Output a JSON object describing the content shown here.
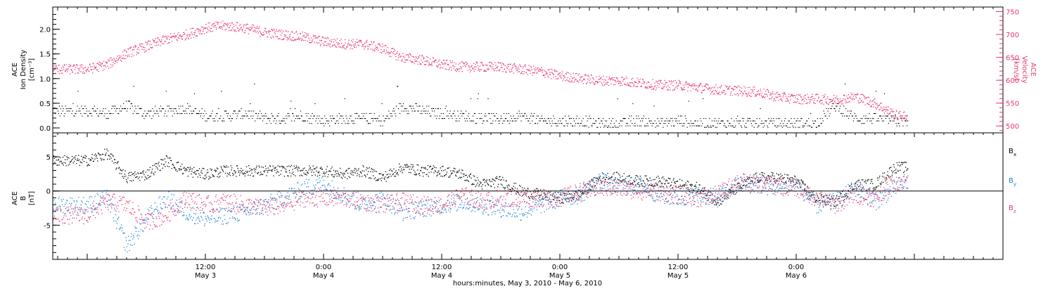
{
  "chart_data": [
    {
      "type": "scatter",
      "panel": "top",
      "ylabel_left": [
        "ACE",
        "Ion Density",
        "[cm⁻³]"
      ],
      "ylabel_right": [
        "ACE",
        "Velocity",
        "[km/s]"
      ],
      "ylim_left": [
        -0.1,
        2.45
      ],
      "ylim_right": [
        485,
        760
      ],
      "yticks_left": [
        "0.0",
        "0.5",
        "1.0",
        "1.5",
        "2.0"
      ],
      "ytick_values_left": [
        0.0,
        0.5,
        1.0,
        1.5,
        2.0
      ],
      "yticks_right": [
        "500",
        "550",
        "600",
        "650",
        "700",
        "750"
      ],
      "ytick_values_right": [
        500,
        550,
        600,
        650,
        700,
        750
      ],
      "colors": {
        "density": "#000000",
        "velocity": "#e8386b"
      },
      "series": [
        {
          "axis": "left",
          "x_hours": [
            0,
            2,
            4,
            6,
            8,
            10,
            12,
            14,
            16,
            18,
            20,
            22,
            24,
            26,
            28,
            30,
            32,
            34,
            36,
            38,
            40,
            42,
            44,
            46,
            48,
            50,
            52,
            54,
            56,
            58,
            60,
            62,
            64,
            66,
            68,
            70,
            72,
            74,
            76,
            78,
            80,
            82,
            83.3
          ],
          "values": [
            0.35,
            0.3,
            0.45,
            0.3,
            0.35,
            0.4,
            0.25,
            0.25,
            0.3,
            0.2,
            0.2,
            0.25,
            0.15,
            0.2,
            0.2,
            0.15,
            0.45,
            0.35,
            0.3,
            0.25,
            0.2,
            0.2,
            0.25,
            0.15,
            0.15,
            0.15,
            0.1,
            0.1,
            0.15,
            0.1,
            0.15,
            0.1,
            0.1,
            0.1,
            0.1,
            0.1,
            0.1,
            0.1,
            0.45,
            0.2,
            0.2,
            0.15,
            0.15
          ]
        },
        {
          "axis": "right",
          "x_hours": [
            0,
            2,
            4,
            6,
            8,
            10,
            12,
            14,
            16,
            18,
            20,
            22,
            24,
            26,
            28,
            30,
            32,
            34,
            36,
            38,
            40,
            42,
            44,
            46,
            48,
            50,
            52,
            54,
            56,
            58,
            60,
            62,
            64,
            66,
            68,
            70,
            72,
            74,
            76,
            78,
            80,
            82,
            83.3
          ],
          "values": [
            625,
            635,
            660,
            675,
            690,
            700,
            715,
            720,
            715,
            705,
            700,
            695,
            685,
            680,
            680,
            670,
            650,
            645,
            635,
            630,
            630,
            630,
            625,
            620,
            610,
            605,
            600,
            600,
            595,
            590,
            590,
            585,
            580,
            578,
            575,
            565,
            560,
            560,
            558,
            565,
            550,
            525,
            520
          ]
        }
      ]
    },
    {
      "type": "scatter",
      "panel": "bottom",
      "ylabel_left": [
        "ACE",
        "B",
        "[nT]"
      ],
      "ylim": [
        -10,
        8.5
      ],
      "yticks": [
        "-5",
        "0",
        "5"
      ],
      "ytick_values": [
        -5,
        0,
        5
      ],
      "series": [
        {
          "name": "Bx",
          "color": "#000000",
          "x_hours": [
            0,
            2,
            4,
            6,
            8,
            10,
            12,
            14,
            16,
            18,
            20,
            22,
            24,
            26,
            28,
            30,
            32,
            34,
            36,
            38,
            40,
            42,
            44,
            46,
            48,
            50,
            52,
            54,
            56,
            58,
            60,
            62,
            64,
            66,
            68,
            70,
            72,
            74,
            76,
            78,
            80,
            82,
            83.3
          ],
          "values": [
            4.5,
            5.5,
            2.0,
            2.5,
            4.5,
            3.0,
            2.5,
            3.0,
            3.0,
            3.0,
            3.0,
            3.0,
            3.0,
            2.5,
            3.0,
            2.0,
            3.5,
            3.0,
            3.0,
            2.5,
            1.0,
            1.5,
            0.0,
            -0.5,
            -1.0,
            -0.5,
            2.0,
            2.0,
            1.5,
            1.5,
            1.0,
            0.5,
            -1.5,
            0.5,
            2.0,
            2.0,
            1.5,
            -1.0,
            -1.5,
            1.0,
            1.0,
            3.5,
            3.5
          ]
        },
        {
          "name": "By",
          "color": "#1f80d8",
          "x_hours": [
            0,
            2,
            4,
            6,
            8,
            10,
            12,
            14,
            16,
            18,
            20,
            22,
            24,
            26,
            28,
            30,
            32,
            34,
            36,
            38,
            40,
            42,
            44,
            46,
            48,
            50,
            52,
            54,
            56,
            58,
            60,
            62,
            64,
            66,
            68,
            70,
            72,
            74,
            76,
            78,
            80,
            82,
            83.3
          ],
          "values": [
            -2.0,
            -1.0,
            -8.0,
            -4.0,
            -1.0,
            -3.0,
            -4.0,
            -3.5,
            -3.0,
            -2.0,
            -1.0,
            0.5,
            1.0,
            -0.5,
            -2.0,
            -1.0,
            -3.0,
            -2.5,
            -2.0,
            -1.5,
            -2.0,
            -2.5,
            -3.0,
            -2.0,
            -1.0,
            -0.5,
            1.5,
            0.5,
            1.0,
            -0.5,
            -1.0,
            -0.5,
            -1.0,
            1.0,
            1.0,
            0.5,
            1.0,
            -2.0,
            -1.5,
            0.5,
            -1.5,
            0.5,
            1.5
          ]
        },
        {
          "name": "Bz",
          "color": "#e8386b",
          "x_hours": [
            0,
            2,
            4,
            6,
            8,
            10,
            12,
            14,
            16,
            18,
            20,
            22,
            24,
            26,
            28,
            30,
            32,
            34,
            36,
            38,
            40,
            42,
            44,
            46,
            48,
            50,
            52,
            54,
            56,
            58,
            60,
            62,
            64,
            66,
            68,
            70,
            72,
            74,
            76,
            78,
            80,
            82,
            83.3
          ],
          "values": [
            -3.5,
            -1.5,
            -2.0,
            -4.5,
            -3.5,
            -1.0,
            -2.0,
            -1.5,
            -2.0,
            -2.5,
            -2.0,
            -1.0,
            -1.0,
            -1.0,
            -1.5,
            -2.0,
            -1.5,
            -2.0,
            -2.0,
            -0.5,
            -1.5,
            -1.0,
            -1.0,
            -1.0,
            -1.0,
            0.0,
            0.5,
            0.5,
            0.0,
            0.0,
            -0.5,
            -1.0,
            -0.5,
            1.5,
            1.0,
            1.0,
            0.5,
            -1.0,
            -2.0,
            -0.5,
            -1.0,
            1.5,
            1.5
          ]
        }
      ],
      "legend": [
        {
          "label": "B",
          "sub": "x",
          "color": "#000000"
        },
        {
          "label": "B",
          "sub": "y",
          "color": "#1f80d8"
        },
        {
          "label": "B",
          "sub": "z",
          "color": "#e8386b"
        }
      ],
      "legend_position": "right"
    }
  ],
  "x_axis": {
    "range_hours": [
      -3.5,
      93
    ],
    "ticks": [
      {
        "hours": 12,
        "time": "12:00",
        "date": "May 3"
      },
      {
        "hours": 24,
        "time": "0:00",
        "date": "May 4"
      },
      {
        "hours": 36,
        "time": "12:00",
        "date": "May 4"
      },
      {
        "hours": 48,
        "time": "0:00",
        "date": "May 5"
      },
      {
        "hours": 60,
        "time": "12:00",
        "date": "May 5"
      },
      {
        "hours": 72,
        "time": "0:00",
        "date": "May 6"
      }
    ],
    "label": "hours:minutes, May  3, 2010 - May  6, 2010"
  }
}
